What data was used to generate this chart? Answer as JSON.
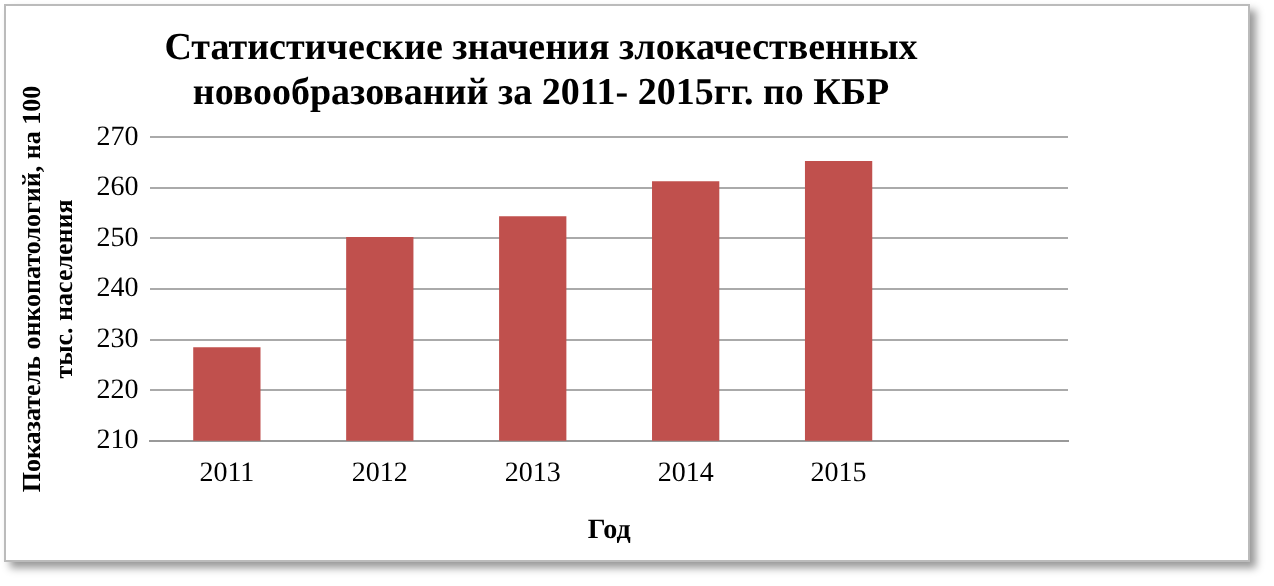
{
  "chart_data": {
    "type": "bar",
    "title": "Статистические значения злокачественных новообразований за 2011- 2015гг. по КБР",
    "xlabel": "Год",
    "ylabel": "Показатель онкопатологий, на 100 тыс. населения",
    "categories": [
      "2011",
      "2012",
      "2013",
      "2014",
      "2015",
      null
    ],
    "values": [
      228.5,
      250.3,
      254.4,
      261.3,
      265.3,
      null
    ],
    "color": "#c0504d",
    "ylim": [
      210,
      270
    ],
    "yticks": [
      210,
      220,
      230,
      240,
      250,
      260,
      270
    ],
    "grid": "y"
  }
}
